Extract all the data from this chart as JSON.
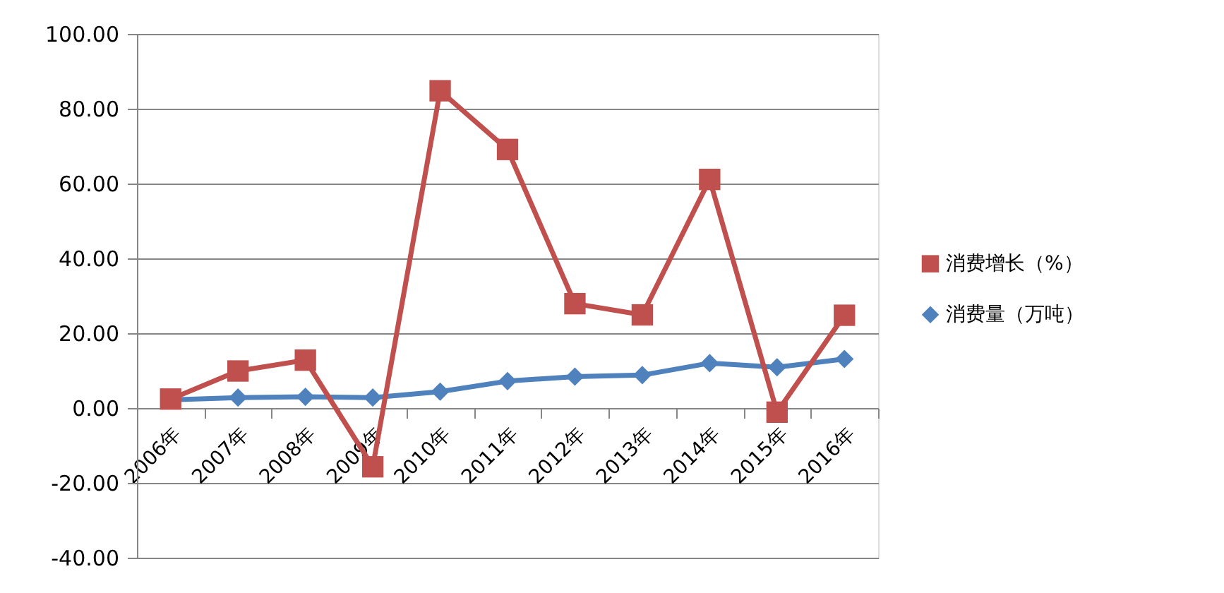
{
  "chart_data": {
    "type": "line",
    "categories": [
      "2006年",
      "2007年",
      "2008年",
      "2009年",
      "2010年",
      "2011年",
      "2012年",
      "2013年",
      "2014年",
      "2015年",
      "2016年"
    ],
    "series": [
      {
        "name": "消费增长（%）",
        "color": "#c0504d",
        "marker": "square",
        "values": [
          2.4,
          9.9,
          12.8,
          -15.7,
          84.8,
          69.1,
          27.9,
          24.9,
          61.1,
          -1.1,
          24.8
        ]
      },
      {
        "name": "消费量（万吨）",
        "color": "#4f81bd",
        "marker": "diamond",
        "values": [
          2.2,
          2.8,
          3.0,
          2.8,
          4.4,
          7.2,
          8.4,
          8.8,
          12.0,
          10.9,
          13.1
        ]
      }
    ],
    "ylim": [
      -40,
      100
    ],
    "yticks": [
      {
        "value": -40,
        "label": "-40.00"
      },
      {
        "value": -20,
        "label": "-20.00"
      },
      {
        "value": 0,
        "label": "0.00"
      },
      {
        "value": 20,
        "label": "20.00"
      },
      {
        "value": 40,
        "label": "40.00"
      },
      {
        "value": 60,
        "label": "60.00"
      },
      {
        "value": 80,
        "label": "80.00"
      },
      {
        "value": 100,
        "label": "100.00"
      }
    ],
    "grid": "y",
    "legend": "right",
    "line_style": "solid"
  }
}
